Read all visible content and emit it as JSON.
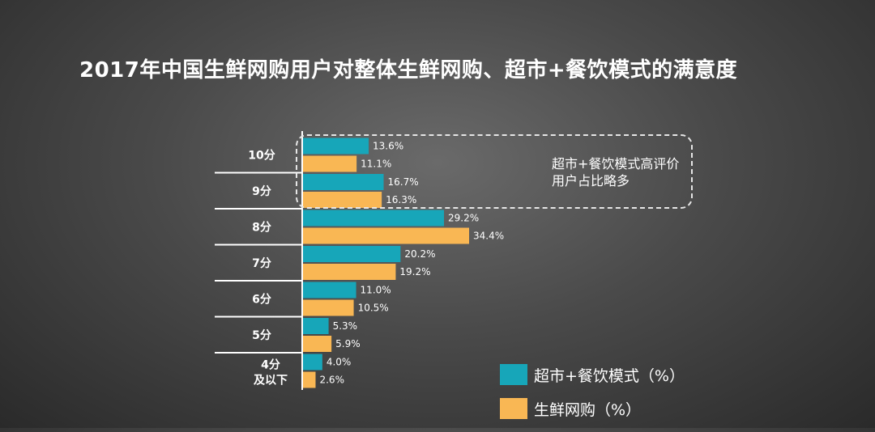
{
  "title": "2017年中国生鲜网购用户对整体生鲜网购、超市+餐饮模式的满意度",
  "annotation": "超市+餐饮模式高评价用户占比略多",
  "colors": {
    "series1": "#17a6b9",
    "series2": "#f9b754",
    "text": "#ffffff",
    "divider": "#ffffff"
  },
  "legend": [
    {
      "label": "超市+餐饮模式（%）",
      "color": "#17a6b9"
    },
    {
      "label": "生鲜网购（%）",
      "color": "#f9b754"
    }
  ],
  "chart_data": {
    "type": "bar",
    "orientation": "horizontal",
    "categories": [
      [
        "10分"
      ],
      [
        "9分"
      ],
      [
        "8分"
      ],
      [
        "7分"
      ],
      [
        "6分"
      ],
      [
        "5分"
      ],
      [
        "4分",
        "及以下"
      ]
    ],
    "series": [
      {
        "name": "超市+餐饮模式（%）",
        "values": [
          13.6,
          16.7,
          29.2,
          20.2,
          11.0,
          5.3,
          4.0
        ],
        "labels": [
          "13.6%",
          "16.7%",
          "29.2%",
          "20.2%",
          "11.0%",
          "5.3%",
          "4.0%"
        ],
        "color": "#17a6b9"
      },
      {
        "name": "生鲜网购（%）",
        "values": [
          11.1,
          16.3,
          34.4,
          19.2,
          10.5,
          5.9,
          2.6
        ],
        "labels": [
          "11.1%",
          "16.3%",
          "34.4%",
          "19.2%",
          "10.5%",
          "5.9%",
          "2.6%"
        ],
        "color": "#f9b754"
      }
    ],
    "xlim": [
      0,
      35
    ],
    "grid": false,
    "legend_position": "bottom-right"
  }
}
